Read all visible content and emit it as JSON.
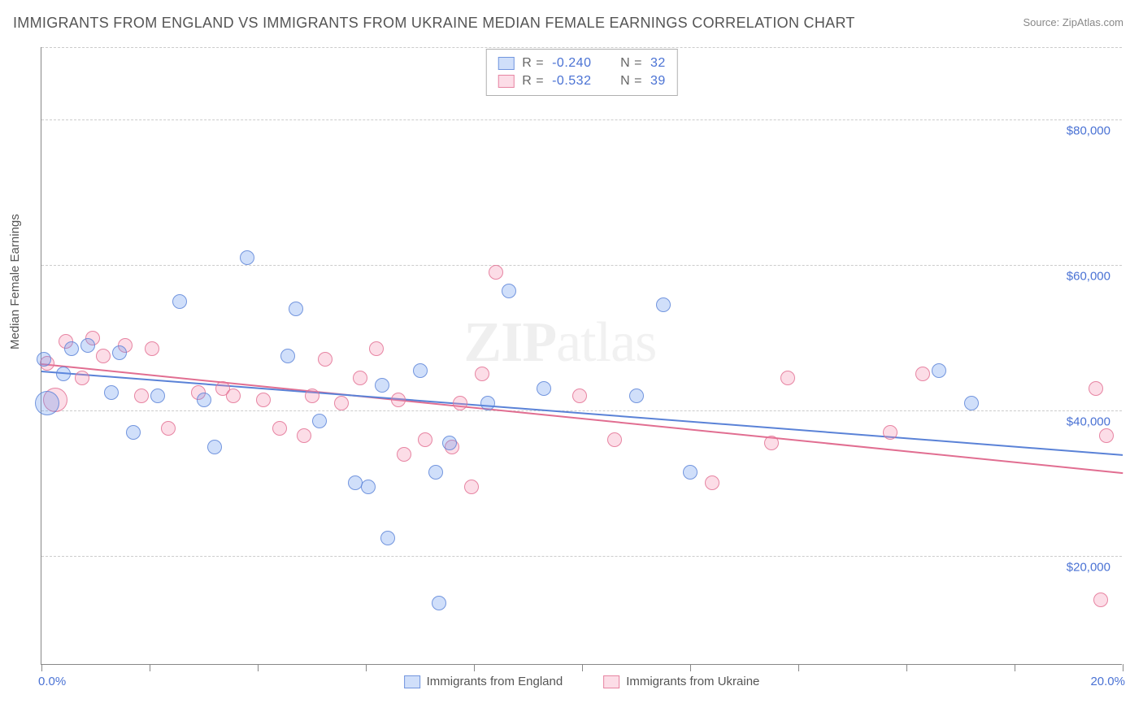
{
  "title": "IMMIGRANTS FROM ENGLAND VS IMMIGRANTS FROM UKRAINE MEDIAN FEMALE EARNINGS CORRELATION CHART",
  "source_label": "Source: ZipAtlas.com",
  "y_axis_label": "Median Female Earnings",
  "watermark": "ZIPatlas",
  "chart": {
    "type": "scatter",
    "xlim": [
      0,
      20
    ],
    "ylim": [
      5000,
      90000
    ],
    "x_ticks": [
      0,
      2,
      4,
      6,
      8,
      10,
      12,
      14,
      16,
      18,
      20
    ],
    "x_edge_labels": {
      "min": "0.0%",
      "max": "20.0%"
    },
    "y_gridlines": [
      20000,
      40000,
      60000,
      80000,
      90000
    ],
    "y_tick_labels": {
      "20000": "$20,000",
      "40000": "$40,000",
      "60000": "$60,000",
      "80000": "$80,000"
    },
    "background_color": "#ffffff",
    "grid_color": "#cccccc",
    "axis_color": "#888888",
    "label_color": "#4a72d4",
    "marker_radius": 9,
    "marker_radius_large": 15
  },
  "series": {
    "england": {
      "label": "Immigrants from England",
      "fill": "rgba(100,149,237,0.30)",
      "stroke": "rgba(90,130,215,0.80)",
      "line_color": "#5a82d7",
      "r": "-0.240",
      "n": "32",
      "trend": {
        "x1": 0,
        "y1": 45500,
        "x2": 20,
        "y2": 34000
      },
      "points": [
        {
          "x": 0.05,
          "y": 47000
        },
        {
          "x": 0.1,
          "y": 41000,
          "large": true
        },
        {
          "x": 0.4,
          "y": 45000
        },
        {
          "x": 0.55,
          "y": 48500
        },
        {
          "x": 0.85,
          "y": 49000
        },
        {
          "x": 1.3,
          "y": 42500
        },
        {
          "x": 1.45,
          "y": 48000
        },
        {
          "x": 1.7,
          "y": 37000
        },
        {
          "x": 2.15,
          "y": 42000
        },
        {
          "x": 2.55,
          "y": 55000
        },
        {
          "x": 3.0,
          "y": 41500
        },
        {
          "x": 3.2,
          "y": 35000
        },
        {
          "x": 3.8,
          "y": 61000
        },
        {
          "x": 4.55,
          "y": 47500
        },
        {
          "x": 4.7,
          "y": 54000
        },
        {
          "x": 5.15,
          "y": 38500
        },
        {
          "x": 5.8,
          "y": 30000
        },
        {
          "x": 6.05,
          "y": 29500
        },
        {
          "x": 6.3,
          "y": 43500
        },
        {
          "x": 6.4,
          "y": 22500
        },
        {
          "x": 7.0,
          "y": 45500
        },
        {
          "x": 7.3,
          "y": 31500
        },
        {
          "x": 7.35,
          "y": 13500
        },
        {
          "x": 7.55,
          "y": 35500
        },
        {
          "x": 8.25,
          "y": 41000
        },
        {
          "x": 8.65,
          "y": 56500
        },
        {
          "x": 9.3,
          "y": 43000
        },
        {
          "x": 11.0,
          "y": 42000
        },
        {
          "x": 11.5,
          "y": 54500
        },
        {
          "x": 12.0,
          "y": 31500
        },
        {
          "x": 16.6,
          "y": 45500
        },
        {
          "x": 17.2,
          "y": 41000
        }
      ]
    },
    "ukraine": {
      "label": "Immigrants from Ukraine",
      "fill": "rgba(244,143,177,0.30)",
      "stroke": "rgba(225,110,145,0.80)",
      "line_color": "#e16e91",
      "r": "-0.532",
      "n": "39",
      "trend": {
        "x1": 0,
        "y1": 46500,
        "x2": 20,
        "y2": 31500
      },
      "points": [
        {
          "x": 0.1,
          "y": 46500
        },
        {
          "x": 0.25,
          "y": 41500,
          "large": true
        },
        {
          "x": 0.45,
          "y": 49500
        },
        {
          "x": 0.75,
          "y": 44500
        },
        {
          "x": 0.95,
          "y": 50000
        },
        {
          "x": 1.15,
          "y": 47500
        },
        {
          "x": 1.55,
          "y": 49000
        },
        {
          "x": 1.85,
          "y": 42000
        },
        {
          "x": 2.05,
          "y": 48500
        },
        {
          "x": 2.35,
          "y": 37500
        },
        {
          "x": 2.9,
          "y": 42500
        },
        {
          "x": 3.35,
          "y": 43000
        },
        {
          "x": 3.55,
          "y": 42000
        },
        {
          "x": 4.1,
          "y": 41500
        },
        {
          "x": 4.4,
          "y": 37500
        },
        {
          "x": 4.85,
          "y": 36500
        },
        {
          "x": 5.0,
          "y": 42000
        },
        {
          "x": 5.25,
          "y": 47000
        },
        {
          "x": 5.55,
          "y": 41000
        },
        {
          "x": 5.9,
          "y": 44500
        },
        {
          "x": 6.2,
          "y": 48500
        },
        {
          "x": 6.6,
          "y": 41500
        },
        {
          "x": 6.7,
          "y": 34000
        },
        {
          "x": 7.1,
          "y": 36000
        },
        {
          "x": 7.6,
          "y": 35000
        },
        {
          "x": 7.75,
          "y": 41000
        },
        {
          "x": 7.95,
          "y": 29500
        },
        {
          "x": 8.15,
          "y": 45000
        },
        {
          "x": 8.4,
          "y": 59000
        },
        {
          "x": 9.95,
          "y": 42000
        },
        {
          "x": 10.6,
          "y": 36000
        },
        {
          "x": 12.4,
          "y": 30000
        },
        {
          "x": 13.5,
          "y": 35500
        },
        {
          "x": 13.8,
          "y": 44500
        },
        {
          "x": 15.7,
          "y": 37000
        },
        {
          "x": 16.3,
          "y": 45000
        },
        {
          "x": 19.5,
          "y": 43000
        },
        {
          "x": 19.6,
          "y": 14000
        },
        {
          "x": 19.7,
          "y": 36500
        }
      ]
    }
  }
}
